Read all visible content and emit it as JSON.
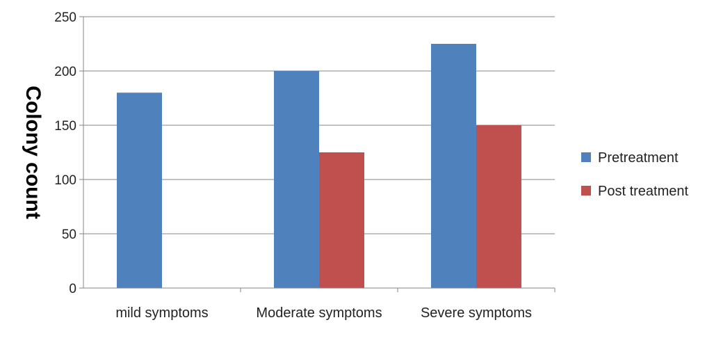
{
  "chart_data": {
    "type": "bar",
    "title": "",
    "xlabel": "",
    "ylabel": "Colony count",
    "categories": [
      "mild symptoms",
      "Moderate symptoms",
      "Severe symptoms"
    ],
    "series": [
      {
        "name": "Pretreatment",
        "values": [
          180,
          200,
          225
        ],
        "color": "#4F81BD"
      },
      {
        "name": "Post treatment",
        "values": [
          0,
          125,
          150
        ],
        "color": "#C0504D"
      }
    ],
    "ylim": [
      0,
      250
    ],
    "yticks": [
      0,
      50,
      100,
      150,
      200,
      250
    ],
    "grid": true,
    "legend": "right"
  }
}
